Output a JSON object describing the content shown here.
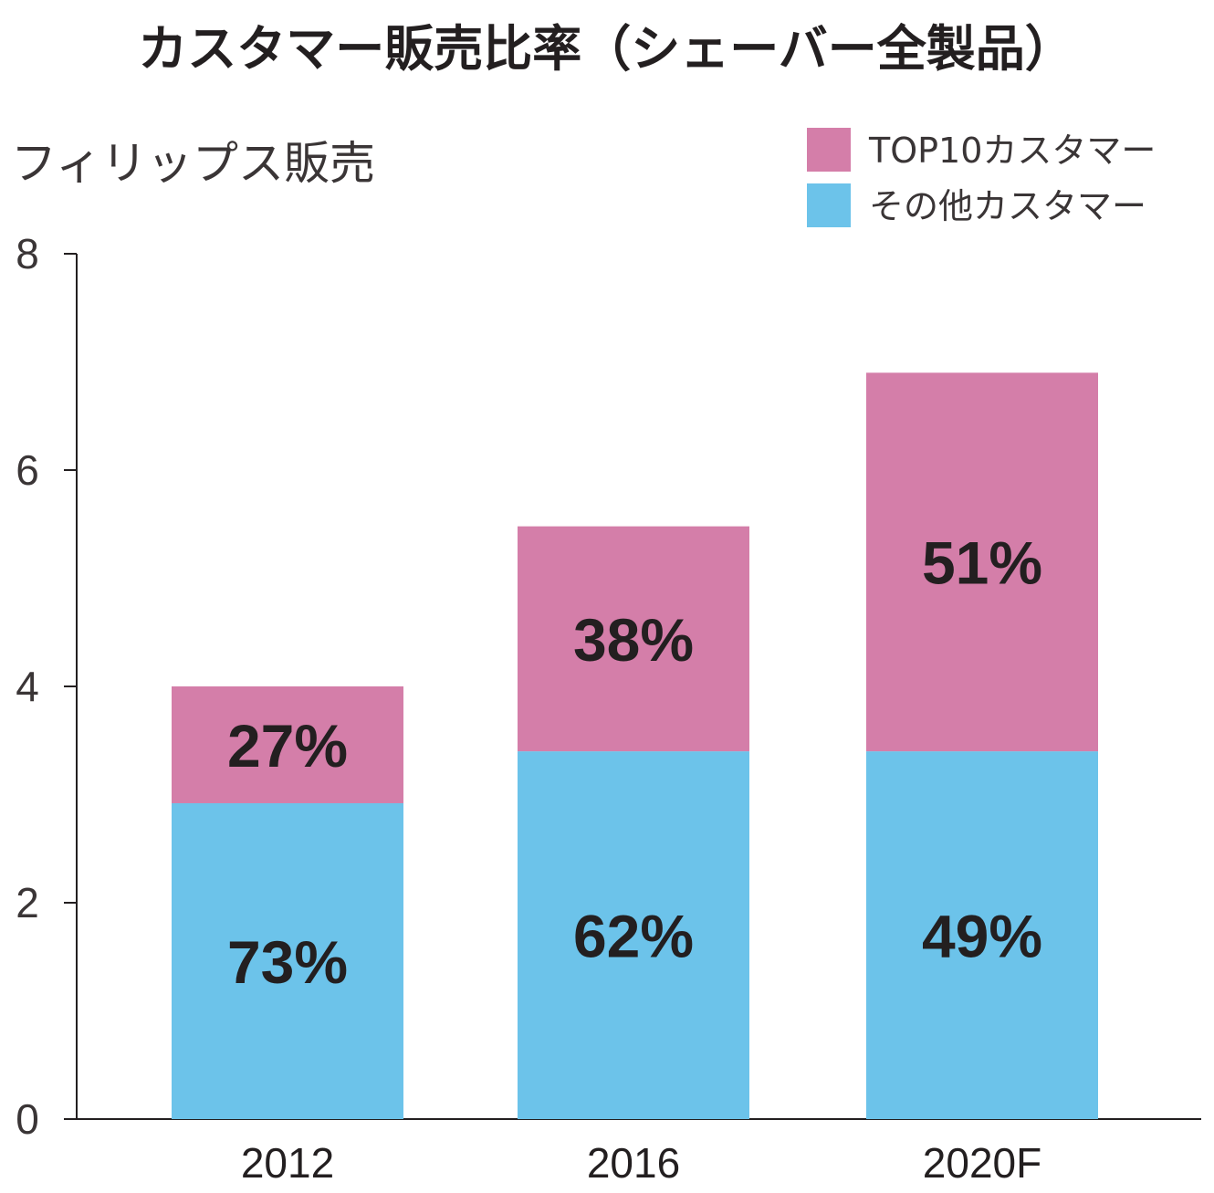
{
  "chart_data": {
    "type": "bar",
    "stacked": true,
    "title": "カスタマー販売比率（シェーバー全製品）",
    "ylabel": "フィリップス販売",
    "xlabel": "",
    "categories": [
      "2012",
      "2016",
      "2020F"
    ],
    "yticks": [
      "0",
      "2",
      "4",
      "6",
      "8"
    ],
    "ylim": [
      0,
      8
    ],
    "grid": false,
    "legend_position": "top-right",
    "series": [
      {
        "name": "その他カスタマー",
        "color": "#6cc3ea",
        "values": [
          2.92,
          3.4,
          3.4
        ],
        "labels": [
          "73%",
          "62%",
          "49%"
        ]
      },
      {
        "name": "TOP10カスタマー",
        "color": "#d47ea9",
        "values": [
          1.08,
          2.08,
          3.5
        ],
        "labels": [
          "27%",
          "38%",
          "51%"
        ]
      }
    ],
    "legend_order": [
      1,
      0
    ]
  }
}
